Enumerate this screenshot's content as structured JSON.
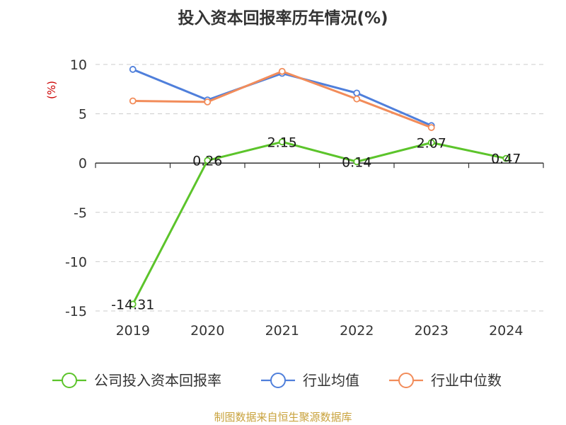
{
  "chart_data": {
    "type": "line",
    "title": "投入资本回报率历年情况(%)",
    "ylabel": "(%)",
    "categories": [
      "2019",
      "2020",
      "2021",
      "2022",
      "2023",
      "2024"
    ],
    "ylim": [
      -15,
      10
    ],
    "yticks": [
      "10",
      "5",
      "0",
      "-5",
      "-10",
      "-15"
    ],
    "grid": true,
    "legend_position": "bottom",
    "series": [
      {
        "name": "公司投入资本回报率",
        "color": "#5cc42b",
        "values": [
          -14.31,
          0.26,
          2.15,
          0.14,
          2.07,
          0.47
        ],
        "labels": [
          "-14.31",
          "0.26",
          "2.15",
          "0.14",
          "2.07",
          "0.47"
        ]
      },
      {
        "name": "行业均值",
        "color": "#4f7fdb",
        "values": [
          9.5,
          6.4,
          9.1,
          7.1,
          3.8,
          null
        ]
      },
      {
        "name": "行业中位数",
        "color": "#f28c5a",
        "values": [
          6.3,
          6.2,
          9.3,
          6.5,
          3.6,
          null
        ]
      }
    ]
  },
  "footer": {
    "source": "制图数据来自恒生聚源数据库"
  }
}
